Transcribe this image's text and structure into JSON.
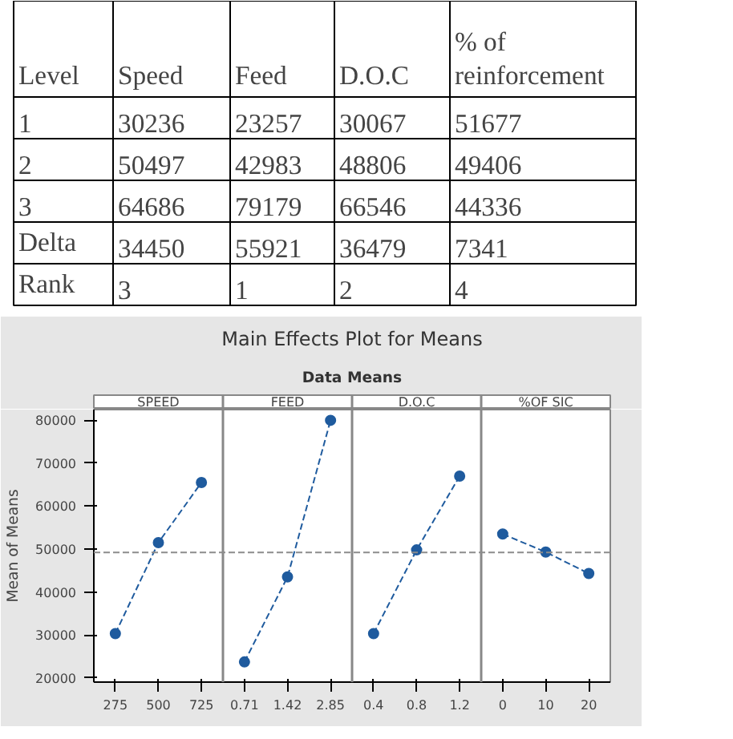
{
  "chart_data": [
    {
      "type": "other",
      "categories": [
        "Level",
        "Speed",
        "Feed",
        "D.O.C",
        "% of\nreinforcement"
      ],
      "annotations": [
        "1",
        "30236",
        "23257",
        "30067",
        "51677",
        "2",
        "50497",
        "42983",
        "48806",
        "49406",
        "3",
        "64686",
        "79179",
        "66546",
        "44336",
        "Delta",
        "34450",
        "55921",
        "36479",
        "7341",
        "Rank",
        "3",
        "1",
        "2",
        "4"
      ]
    },
    {
      "type": "line",
      "title": "Main Effects Plot for Means",
      "subtitle": "Data Means",
      "ylabel": "Mean of Means",
      "categories": [
        "275",
        "500",
        "725",
        "0.71",
        "1.42",
        "2.85",
        "0.4",
        "0.8",
        "1.2",
        "0",
        "10",
        "20"
      ],
      "annotations": [
        "SPEED",
        "FEED",
        "D.O.C",
        "%OF SIC"
      ],
      "series": [
        {
          "color": "#1f5b9e",
          "values": [
            30300,
            51500,
            65500,
            null,
            null,
            null,
            null,
            null,
            null,
            null,
            null,
            null
          ]
        },
        {
          "color": "#1f5b9e",
          "values": [
            null,
            null,
            null,
            23700,
            43500,
            80000,
            null,
            null,
            null,
            null,
            null,
            null
          ]
        },
        {
          "color": "#1f5b9e",
          "values": [
            null,
            null,
            null,
            null,
            null,
            null,
            30300,
            49800,
            67000,
            null,
            null,
            null
          ]
        },
        {
          "color": "#1f5b9e",
          "values": [
            null,
            null,
            null,
            null,
            null,
            null,
            null,
            null,
            null,
            53500,
            49300,
            44300
          ]
        }
      ],
      "ylim": [
        19000,
        82500
      ],
      "yticks": [
        20000,
        30000,
        40000,
        50000,
        60000,
        70000,
        80000
      ],
      "ref_lines": [
        {
          "axis": "y",
          "value": 49200,
          "color": "#8c8c8c",
          "line_style": "dashed"
        }
      ],
      "marker": "circle",
      "line_style": "dashed",
      "grid": false
    }
  ]
}
